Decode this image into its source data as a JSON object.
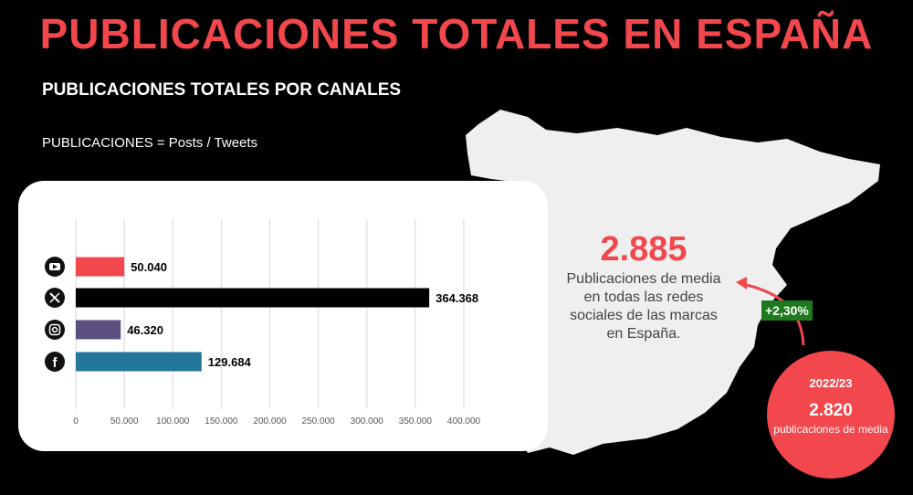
{
  "header": {
    "title": "PUBLICACIONES TOTALES EN ESPAÑA",
    "subtitle": "PUBLICACIONES TOTALES POR CANALES",
    "note": "PUBLICACIONES = Posts / Tweets"
  },
  "chart_data": {
    "type": "bar",
    "orientation": "horizontal",
    "categories": [
      "YouTube",
      "X",
      "Instagram",
      "Facebook"
    ],
    "values": [
      50040,
      364368,
      46320,
      129684
    ],
    "value_labels": [
      "50.040",
      "364.368",
      "46.320",
      "129.684"
    ],
    "colors": [
      "#f2474d",
      "#000000",
      "#5b4f80",
      "#23779a"
    ],
    "icons": [
      "youtube-icon",
      "x-icon",
      "instagram-icon",
      "facebook-icon"
    ],
    "xlim": [
      0,
      400000
    ],
    "ticks": [
      0,
      50000,
      100000,
      150000,
      200000,
      250000,
      300000,
      350000,
      400000
    ],
    "tick_labels": [
      "0",
      "50.000",
      "100.000",
      "150.000",
      "200.000",
      "250.000",
      "300.000",
      "350.000",
      "400.000"
    ],
    "grid": true
  },
  "summary": {
    "total": "2.885",
    "description": "Publicaciones de media en todas las redes sociales de las marcas en España.",
    "change": "+2,30%"
  },
  "previous": {
    "period": "2022/23",
    "value": "2.820",
    "description": "publicaciones de media"
  },
  "colors": {
    "accent": "#f2474d",
    "map": "#efefef",
    "badge": "#1e7a1e"
  }
}
